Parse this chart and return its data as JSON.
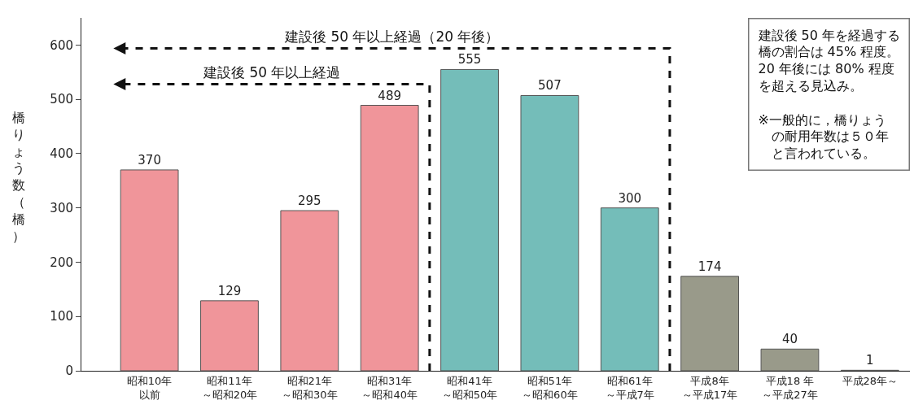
{
  "chart_data": {
    "type": "bar",
    "ylabel": "橋りょう数（橋）",
    "categories": [
      "昭和10年以前",
      "昭和11年～昭和20年",
      "昭和21年～昭和30年",
      "昭和31年～昭和40年",
      "昭和41年～昭和50年",
      "昭和51年～昭和60年",
      "昭和61年～平成7年",
      "平成8年～平成17年",
      "平成18 年～平成27年",
      "平成28年～"
    ],
    "values": [
      370,
      129,
      295,
      489,
      555,
      507,
      300,
      174,
      40,
      1
    ],
    "colors": [
      "#f0959a",
      "#f0959a",
      "#f0959a",
      "#f0959a",
      "#74bdb9",
      "#74bdb9",
      "#74bdb9",
      "#999a8a",
      "#999a8a",
      "#999a8a"
    ],
    "data_labels": true,
    "ylim": [
      0,
      650
    ],
    "yticks": [
      0,
      100,
      200,
      300,
      400,
      500,
      600
    ],
    "annotations": [
      "建設後 50 年以上経過",
      "建設後 50 年以上経過（20 年後）",
      "建設後 50 年を経過する橋の割合は 45% 程度。20 年後には 80% 程度を超える見込み。",
      "※一般的に，橋りょうの耐用年数は５０年と言われている。"
    ]
  }
}
